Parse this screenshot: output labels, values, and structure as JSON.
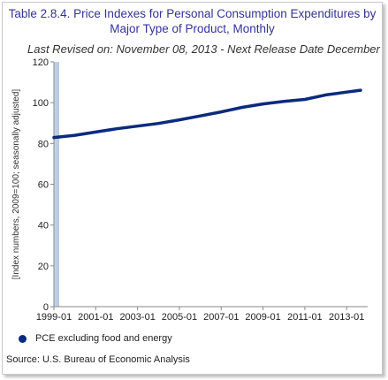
{
  "title_lines": [
    "Table 2.8.4. Price Indexes for Personal Consumption Expenditures by",
    "Major Type of Product, Monthly"
  ],
  "subtitle": "Last Revised on: November 08, 2013 - Next Release Date December",
  "source": "Source: U.S. Bureau of Economic Analysis",
  "chart_data": {
    "type": "line",
    "title": "Table 2.8.4. Price Indexes for Personal Consumption Expenditures by Major Type of Product, Monthly",
    "ylabel": "[Index numbers, 2009=100; seasonally adjusted]",
    "xlabel": "",
    "ylim": [
      0,
      120
    ],
    "yticks": [
      0,
      20,
      40,
      60,
      80,
      100,
      120
    ],
    "xlim": [
      "1999-01",
      "2013-09"
    ],
    "xticks": [
      "1999-01",
      "2001-01",
      "2003-01",
      "2005-01",
      "2007-01",
      "2009-01",
      "2011-01",
      "2013-01"
    ],
    "grid": false,
    "legend": "bottom-left",
    "series": [
      {
        "name": "PCE excluding food and energy",
        "color": "#0b2a7e",
        "x": [
          "1999-01",
          "2000-01",
          "2001-01",
          "2002-01",
          "2003-01",
          "2004-01",
          "2005-01",
          "2006-01",
          "2007-01",
          "2008-01",
          "2009-01",
          "2010-01",
          "2011-01",
          "2012-01",
          "2013-01",
          "2013-09"
        ],
        "values": [
          82.9,
          84.0,
          85.6,
          87.2,
          88.5,
          89.8,
          91.6,
          93.5,
          95.5,
          97.7,
          99.4,
          100.6,
          101.6,
          103.8,
          105.2,
          106.1
        ]
      }
    ]
  }
}
